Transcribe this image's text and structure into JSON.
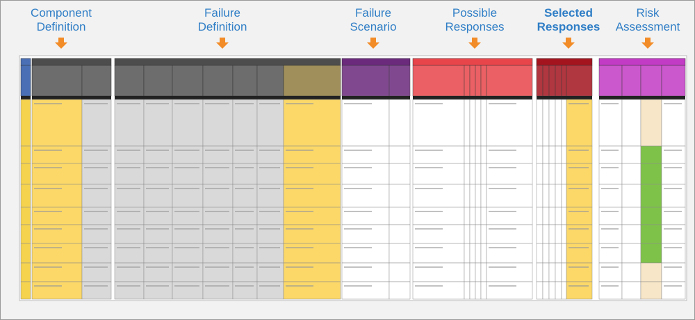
{
  "sections": [
    {
      "label": "Component Definition"
    },
    {
      "label": "Failure Definition"
    },
    {
      "label": "Failure Scenario"
    },
    {
      "label": "Possible Responses"
    },
    {
      "label": "Selected Responses"
    },
    {
      "label": "Risk Assessment"
    }
  ]
}
